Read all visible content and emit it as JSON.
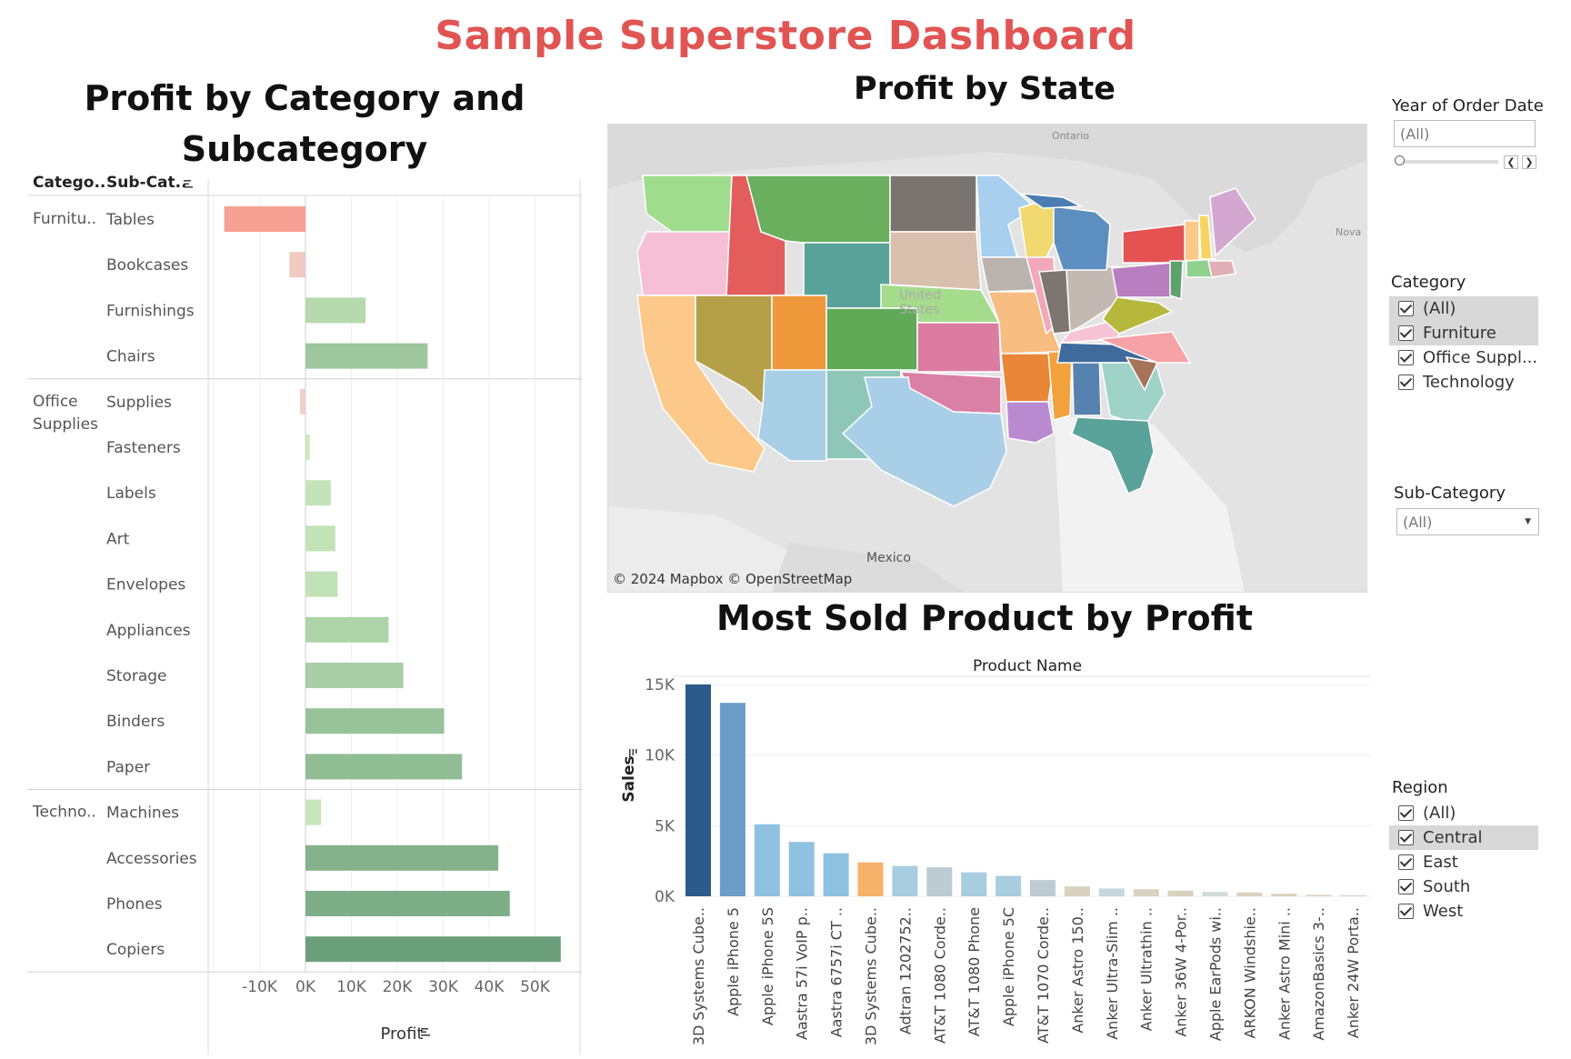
{
  "dashboard_title": "Sample Superstore Dashboard",
  "bar_section": {
    "title_line1": "Profit by Category and",
    "title_line2": "Subcategory",
    "col_category": "Catego..",
    "col_subcategory": "Sub-Cat..",
    "x_axis_title": "Profit"
  },
  "map_section": {
    "title": "Profit by State",
    "attribution": "© 2024 Mapbox © OpenStreetMap",
    "labels": {
      "ontario": "Ontario",
      "mexico": "Mexico",
      "nova": "Nova",
      "united": "United",
      "states": "States"
    }
  },
  "product_section": {
    "title": "Most Sold Product by Profit",
    "header": "Product Name",
    "y_axis_title": "Sales"
  },
  "filters": {
    "year": {
      "title": "Year of Order Date",
      "value": "(All)"
    },
    "category": {
      "title": "Category",
      "options": [
        "(All)",
        "Furniture",
        "Office Suppl...",
        "Technology"
      ]
    },
    "subcategory": {
      "title": "Sub-Category",
      "value": "(All)"
    },
    "region": {
      "title": "Region",
      "options": [
        "(All)",
        "Central",
        "East",
        "South",
        "West"
      ]
    }
  },
  "colors": {
    "title_red": "#e05553",
    "negative": "#f4a79a",
    "positive_light": "#c6e8b6",
    "positive_dark": "#6a9e7a"
  },
  "chart_data": [
    {
      "type": "bar",
      "orientation": "horizontal",
      "title": "Profit by Category and Subcategory",
      "xlabel": "Profit",
      "xlim": [
        -20000,
        60000
      ],
      "x_ticks": [
        "-10K",
        "0K",
        "10K",
        "20K",
        "30K",
        "40K",
        "50K"
      ],
      "groups": [
        {
          "category": "Furnitu..",
          "items": [
            {
              "sub": "Tables",
              "value": -17700
            },
            {
              "sub": "Bookcases",
              "value": -3500
            },
            {
              "sub": "Furnishings",
              "value": 13100
            },
            {
              "sub": "Chairs",
              "value": 26600
            }
          ]
        },
        {
          "category": "Office Supplies",
          "items": [
            {
              "sub": "Supplies",
              "value": -1200
            },
            {
              "sub": "Fasteners",
              "value": 950
            },
            {
              "sub": "Labels",
              "value": 5500
            },
            {
              "sub": "Art",
              "value": 6500
            },
            {
              "sub": "Envelopes",
              "value": 7000
            },
            {
              "sub": "Appliances",
              "value": 18100
            },
            {
              "sub": "Storage",
              "value": 21300
            },
            {
              "sub": "Binders",
              "value": 30200
            },
            {
              "sub": "Paper",
              "value": 34100
            }
          ]
        },
        {
          "category": "Techno..",
          "items": [
            {
              "sub": "Machines",
              "value": 3400
            },
            {
              "sub": "Accessories",
              "value": 42000
            },
            {
              "sub": "Phones",
              "value": 44500
            },
            {
              "sub": "Copiers",
              "value": 55600
            }
          ]
        }
      ]
    },
    {
      "type": "bar",
      "title": "Most Sold Product by Profit",
      "xlabel": "Product Name",
      "ylabel": "Sales",
      "ylim": [
        0,
        15000
      ],
      "y_ticks": [
        "0K",
        "5K",
        "10K",
        "15K"
      ],
      "categories": [
        "3D Systems Cube..",
        "Apple iPhone 5",
        "Apple iPhone 5S",
        "Aastra 57i VoIP p..",
        "Aastra 6757i CT ..",
        "3D Systems Cube..",
        "Adtran 1202752..",
        "AT&T 1080 Corde..",
        "AT&T 1080 Phone",
        "Apple iPhone 5C",
        "AT&T 1070 Corde..",
        "Anker Astro 150..",
        "Anker Ultra-Slim ..",
        "Anker Ultrathin ..",
        "Anker 36W 4-Por..",
        "Apple EarPods wi..",
        "ARKON Windshie..",
        "Anker Astro Mini ..",
        "AmazonBasics 3-..",
        "Anker 24W Porta.."
      ],
      "values": [
        15000,
        13700,
        5100,
        3850,
        3050,
        2400,
        2150,
        2050,
        1700,
        1450,
        1150,
        700,
        550,
        500,
        400,
        300,
        270,
        180,
        100,
        80
      ],
      "bar_colors": [
        "#2c5a8a",
        "#6a9dc8",
        "#8fc2e0",
        "#8fc2e0",
        "#8fc2e0",
        "#f6b26b",
        "#a9cde0",
        "#bcccd2",
        "#a9cde0",
        "#a9cde0",
        "#bcccd2",
        "#d9d2c0",
        "#c6d6dc",
        "#d9d2c0",
        "#d9d2c0",
        "#d0d8dc",
        "#d9d2c0",
        "#d9d2c0",
        "#d9d2c0",
        "#d0d8dc"
      ]
    }
  ]
}
